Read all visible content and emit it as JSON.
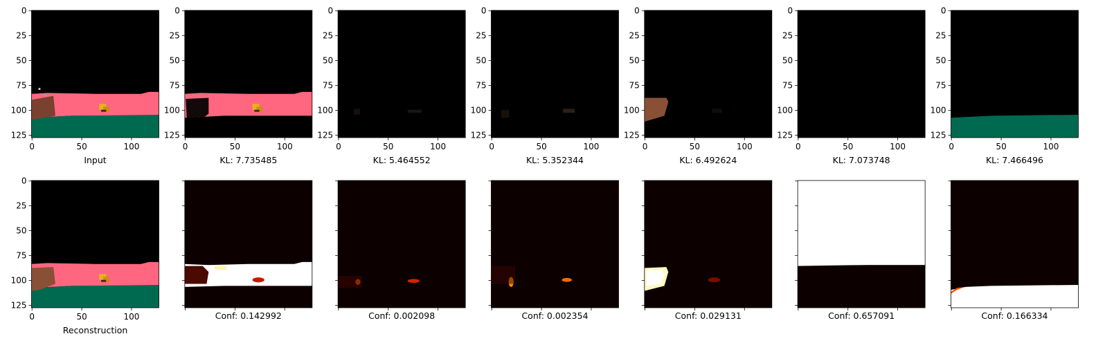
{
  "figure": {
    "colormap": "hot",
    "axis_ticks": [
      "0",
      "25",
      "50",
      "75",
      "100",
      "125"
    ],
    "x_ticks": [
      "0",
      "50",
      "100"
    ],
    "top_row_labels": [
      "Input",
      "KL: 7.735485",
      "KL: 5.464552",
      "KL: 5.352344",
      "KL: 6.492624",
      "KL: 7.073748",
      "KL: 7.466496"
    ],
    "bottom_row_labels": [
      "Reconstruction",
      "Conf: 0.142992",
      "Conf: 0.002098",
      "Conf: 0.002354",
      "Conf: 0.029131",
      "Conf: 0.657091",
      "Conf: 0.166334"
    ]
  },
  "chart_data": {
    "type": "heatmap",
    "image_size": [
      128,
      128
    ],
    "xlim": [
      0,
      128
    ],
    "ylim": [
      128,
      0
    ],
    "x_ticks": [
      0,
      50,
      100
    ],
    "y_ticks": [
      0,
      25,
      50,
      75,
      100,
      125
    ],
    "kl_values": [
      7.735485,
      5.464552,
      5.352344,
      6.492624,
      7.073748,
      7.466496
    ],
    "confidence_values": [
      0.142992,
      0.002098,
      0.002354,
      0.029131,
      0.657091,
      0.166334
    ],
    "colors": {
      "background": "#000000",
      "wall": "#ff6680",
      "floor": "#006a50",
      "object": "#e8b020",
      "shape_brown": "#8a5036",
      "heat_dark": "#0d0000",
      "heat_white": "#ffffff"
    }
  }
}
